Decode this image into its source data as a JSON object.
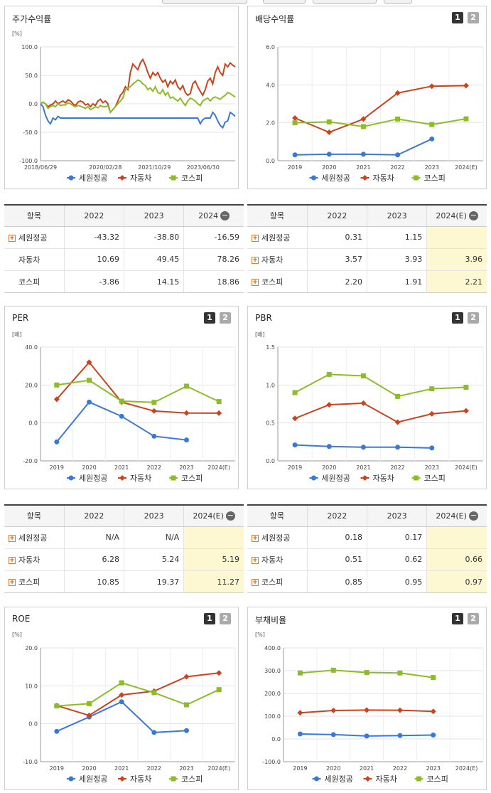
{
  "colors": {
    "seon": "#3a78d8",
    "auto": "#c9441e",
    "kospi": "#8cbc2a"
  },
  "legend": [
    "세원정공",
    "자동차",
    "코스피"
  ],
  "pager": [
    "1",
    "2"
  ],
  "stock": {
    "title": "주가수익률",
    "unit": "[%]",
    "chart_data": {
      "type": "line",
      "ylim": [
        -100,
        100
      ],
      "yticks": [
        "100.0",
        "50.0",
        "0.0",
        "-50.0",
        "-100.0"
      ],
      "xticks": [
        "2018/06/29",
        "2020/02/28",
        "2021/10/29",
        "2023/06/30"
      ],
      "series": [
        {
          "name": "세원정공",
          "values": [
            0,
            -5,
            -20,
            -30,
            -35,
            -25,
            -28,
            -22,
            -25,
            -25,
            -25,
            -25,
            -25,
            -25,
            -25,
            -25,
            -25,
            -25,
            -25,
            -25,
            -25,
            -25,
            -25,
            -25,
            -25,
            -25,
            -25,
            -25,
            -25,
            -25,
            -25,
            -25,
            -25,
            -25,
            -25,
            -25,
            -25,
            -25,
            -25,
            -25,
            -25,
            -25,
            -25,
            -25,
            -25,
            -25,
            -25,
            -25,
            -25,
            -25,
            -25,
            -25,
            -25,
            -25,
            -25,
            -25,
            -25,
            -25,
            -25,
            -25,
            -25,
            -25,
            -25,
            -25,
            -35,
            -28,
            -25,
            -25,
            -25,
            -15,
            -20,
            -30,
            -38,
            -42,
            -32,
            -30,
            -15,
            -18,
            -22
          ]
        },
        {
          "name": "자동차",
          "values": [
            0,
            3,
            0,
            -5,
            -2,
            0,
            5,
            0,
            3,
            5,
            2,
            7,
            5,
            0,
            -3,
            3,
            5,
            3,
            -2,
            0,
            -5,
            0,
            -3,
            5,
            8,
            2,
            5,
            0,
            -15,
            -10,
            -5,
            5,
            15,
            20,
            30,
            25,
            55,
            70,
            65,
            60,
            72,
            78,
            68,
            55,
            45,
            55,
            50,
            55,
            45,
            38,
            42,
            30,
            40,
            35,
            42,
            30,
            25,
            32,
            20,
            15,
            18,
            35,
            40,
            30,
            22,
            15,
            25,
            40,
            45,
            35,
            55,
            65,
            55,
            50,
            70,
            65,
            72,
            68,
            65
          ]
        },
        {
          "name": "코스피",
          "values": [
            0,
            3,
            0,
            -8,
            -5,
            -3,
            -5,
            0,
            -3,
            -2,
            -2,
            2,
            0,
            -3,
            -5,
            -3,
            -4,
            -6,
            -8,
            -5,
            -10,
            -8,
            -5,
            -7,
            -3,
            -5,
            -5,
            -3,
            -15,
            -10,
            -5,
            0,
            5,
            10,
            25,
            28,
            30,
            35,
            38,
            42,
            40,
            35,
            32,
            25,
            28,
            22,
            30,
            20,
            18,
            25,
            15,
            20,
            10,
            12,
            8,
            5,
            10,
            3,
            -3,
            5,
            10,
            8,
            5,
            0,
            -3,
            5,
            8,
            10,
            5,
            10,
            12,
            10,
            8,
            12,
            15,
            20,
            18,
            15,
            12
          ]
        }
      ]
    }
  },
  "dividend": {
    "title": "배당수익률",
    "chart_data": {
      "type": "line",
      "ylim": [
        0,
        6
      ],
      "yticks": [
        "6.0",
        "4.0",
        "2.0",
        "0.0"
      ],
      "categories": [
        "2019",
        "2020",
        "2021",
        "2022",
        "2023",
        "2024(E)"
      ],
      "series": [
        {
          "name": "세원정공",
          "values": [
            0.31,
            0.34,
            0.34,
            0.31,
            1.15,
            null
          ]
        },
        {
          "name": "자동차",
          "values": [
            2.25,
            1.5,
            2.2,
            3.57,
            3.93,
            3.96
          ]
        },
        {
          "name": "코스피",
          "values": [
            2.0,
            2.05,
            1.8,
            2.2,
            1.91,
            2.21
          ]
        }
      ]
    }
  },
  "per": {
    "title": "PER",
    "unit": "[배]",
    "chart_data": {
      "type": "line",
      "ylim": [
        -20,
        40
      ],
      "yticks": [
        "40.0",
        "20.0",
        "0.0",
        "-20.0"
      ],
      "categories": [
        "2019",
        "2020",
        "2021",
        "2022",
        "2023",
        "2024(E)"
      ],
      "series": [
        {
          "name": "세원정공",
          "values": [
            -10,
            11,
            3.5,
            -7,
            -9,
            null
          ]
        },
        {
          "name": "자동차",
          "values": [
            12.5,
            32,
            11,
            6.28,
            5.24,
            5.19
          ]
        },
        {
          "name": "코스피",
          "values": [
            20,
            22.5,
            11.5,
            10.85,
            19.37,
            11.27
          ]
        }
      ]
    }
  },
  "pbr": {
    "title": "PBR",
    "unit": "[배]",
    "chart_data": {
      "type": "line",
      "ylim": [
        0,
        1.5
      ],
      "yticks": [
        "1.5",
        "1.0",
        "0.5",
        "0.0"
      ],
      "categories": [
        "2019",
        "2020",
        "2021",
        "2022",
        "2023",
        "2024(E)"
      ],
      "series": [
        {
          "name": "세원정공",
          "values": [
            0.21,
            0.19,
            0.18,
            0.18,
            0.17,
            null
          ]
        },
        {
          "name": "자동차",
          "values": [
            0.56,
            0.74,
            0.76,
            0.51,
            0.62,
            0.66
          ]
        },
        {
          "name": "코스피",
          "values": [
            0.9,
            1.14,
            1.12,
            0.85,
            0.95,
            0.97
          ]
        }
      ]
    }
  },
  "roe": {
    "title": "ROE",
    "unit": "[%]",
    "chart_data": {
      "type": "line",
      "ylim": [
        -10,
        20
      ],
      "yticks": [
        "20.0",
        "10.0",
        "0.0",
        "-10.0"
      ],
      "categories": [
        "2019",
        "2020",
        "2021",
        "2022",
        "2023",
        "2024(E)"
      ],
      "series": [
        {
          "name": "세원정공",
          "values": [
            -2,
            1.8,
            5.8,
            -2.3,
            -1.8,
            null
          ]
        },
        {
          "name": "자동차",
          "values": [
            4.8,
            2.2,
            7.6,
            8.6,
            12.4,
            13.4
          ]
        },
        {
          "name": "코스피",
          "values": [
            4.7,
            5.3,
            10.8,
            8.2,
            5.0,
            9.0
          ]
        }
      ]
    }
  },
  "debt": {
    "title": "부채비율",
    "unit": "[%]",
    "chart_data": {
      "type": "line",
      "ylim": [
        -100,
        400
      ],
      "yticks": [
        "400.0",
        "300.0",
        "200.0",
        "100.0",
        "0.0",
        "-100.0"
      ],
      "categories": [
        "2019",
        "2020",
        "2021",
        "2022",
        "2023",
        "2024(E)"
      ],
      "series": [
        {
          "name": "세원정공",
          "values": [
            22,
            19,
            13,
            15,
            17,
            null
          ]
        },
        {
          "name": "자동차",
          "values": [
            115,
            125,
            127,
            126,
            121,
            null
          ]
        },
        {
          "name": "코스피",
          "values": [
            290,
            302,
            292,
            290,
            270,
            null
          ]
        }
      ]
    }
  },
  "tables": {
    "stock": {
      "headers": [
        "항목",
        "2022",
        "2023",
        "2024"
      ],
      "rows": [
        {
          "name": "세원정공",
          "cells": [
            "-43.32",
            "-38.80",
            "-16.59"
          ],
          "plus": true
        },
        {
          "name": "자동차",
          "cells": [
            "10.69",
            "49.45",
            "78.26"
          ],
          "plus": false
        },
        {
          "name": "코스피",
          "cells": [
            "-3.86",
            "14.15",
            "18.86"
          ],
          "plus": false
        }
      ]
    },
    "dividend": {
      "headers": [
        "항목",
        "2022",
        "2023",
        "2024(E)"
      ],
      "rows": [
        {
          "name": "세원정공",
          "cells": [
            "0.31",
            "1.15",
            ""
          ],
          "plus": true
        },
        {
          "name": "자동차",
          "cells": [
            "3.57",
            "3.93",
            "3.96"
          ],
          "plus": true
        },
        {
          "name": "코스피",
          "cells": [
            "2.20",
            "1.91",
            "2.21"
          ],
          "plus": true
        }
      ]
    },
    "per": {
      "headers": [
        "항목",
        "2022",
        "2023",
        "2024(E)"
      ],
      "rows": [
        {
          "name": "세원정공",
          "cells": [
            "N/A",
            "N/A",
            ""
          ],
          "plus": true
        },
        {
          "name": "자동차",
          "cells": [
            "6.28",
            "5.24",
            "5.19"
          ],
          "plus": true
        },
        {
          "name": "코스피",
          "cells": [
            "10.85",
            "19.37",
            "11.27"
          ],
          "plus": true
        }
      ]
    },
    "pbr": {
      "headers": [
        "항목",
        "2022",
        "2023",
        "2024(E)"
      ],
      "rows": [
        {
          "name": "세원정공",
          "cells": [
            "0.18",
            "0.17",
            ""
          ],
          "plus": true
        },
        {
          "name": "자동차",
          "cells": [
            "0.51",
            "0.62",
            "0.66"
          ],
          "plus": true
        },
        {
          "name": "코스피",
          "cells": [
            "0.85",
            "0.95",
            "0.97"
          ],
          "plus": true
        }
      ]
    }
  }
}
